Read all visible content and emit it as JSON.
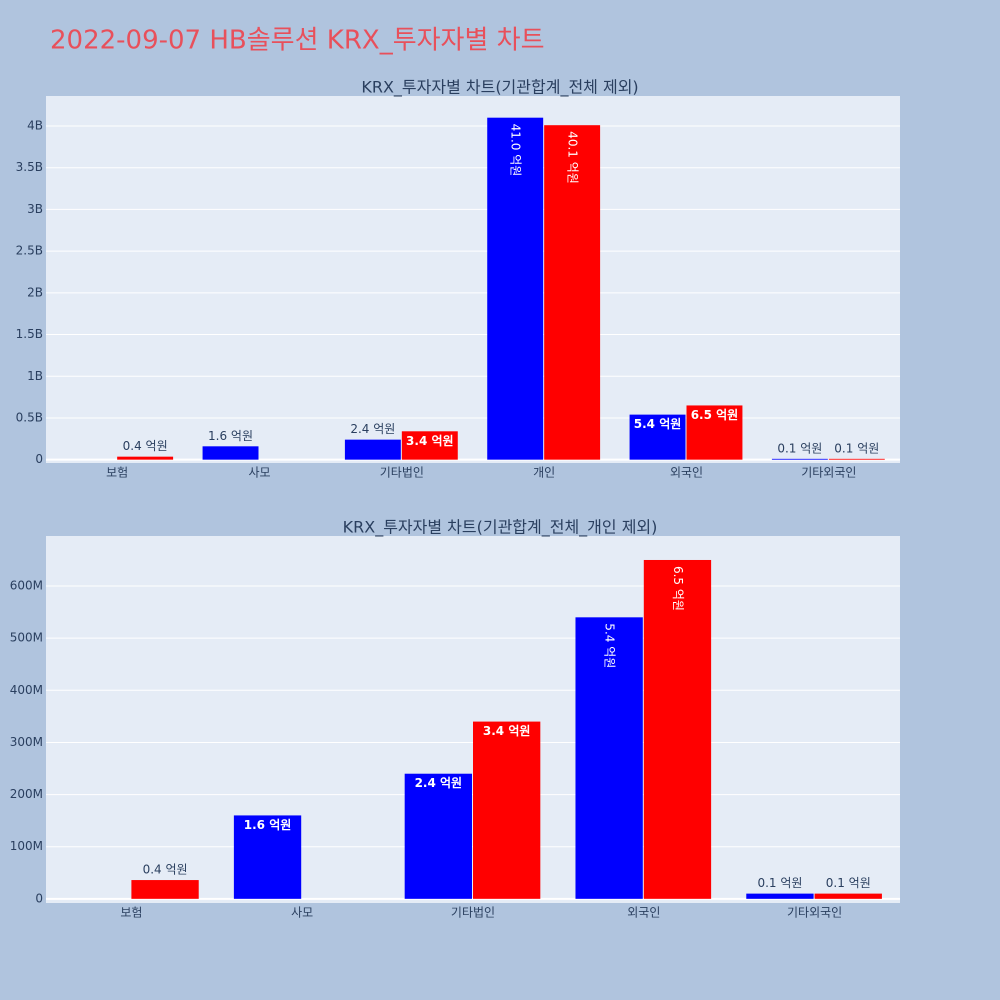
{
  "title": "2022-09-07 HB솔루션 KRX_투자자별 차트",
  "chart_data": [
    {
      "type": "bar",
      "title": "KRX_투자자별 차트(기관합계_전체 제외)",
      "categories": [
        "보험",
        "사모",
        "기타법인",
        "개인",
        "외국인",
        "기타외국인"
      ],
      "series": [
        {
          "color": "#0000ff",
          "values": [
            null,
            160000000,
            240000000,
            4100000000,
            540000000,
            10000000
          ],
          "value_labels": [
            null,
            "1.6 억원",
            "2.4 억원",
            "41.0 억원",
            "5.4 억원",
            "0.1 억원"
          ]
        },
        {
          "color": "#ff0000",
          "values": [
            36000000,
            null,
            340000000,
            4010000000,
            650000000,
            10000000
          ],
          "value_labels": [
            "0.4 억원",
            null,
            "3.4 억원",
            "40.1 억원",
            "6.5 억원",
            "0.1 억원"
          ]
        }
      ],
      "ylim": [
        -40000000,
        4360000000
      ],
      "yticks": [
        0,
        {
          "value": 500000000,
          "label": "0.5B"
        },
        {
          "value": 1000000000,
          "label": "1B"
        },
        {
          "value": 1500000000,
          "label": "1.5B"
        },
        {
          "value": 2000000000,
          "label": "2B"
        },
        {
          "value": 2500000000,
          "label": "2.5B"
        },
        {
          "value": 3000000000,
          "label": "3B"
        },
        {
          "value": 3500000000,
          "label": "3.5B"
        },
        {
          "value": 4000000000,
          "label": "4B"
        }
      ],
      "grid": true
    },
    {
      "type": "bar",
      "title": "KRX_투자자별 차트(기관합계_전체_개인 제외)",
      "categories": [
        "보험",
        "사모",
        "기타법인",
        "외국인",
        "기타외국인"
      ],
      "series": [
        {
          "color": "#0000ff",
          "values": [
            null,
            160000000,
            240000000,
            540000000,
            10000000
          ],
          "value_labels": [
            null,
            "1.6 억원",
            "2.4 억원",
            "5.4 억원",
            "0.1 억원"
          ]
        },
        {
          "color": "#ff0000",
          "values": [
            36000000,
            null,
            340000000,
            650000000,
            10000000
          ],
          "value_labels": [
            "0.4 억원",
            null,
            "3.4 억원",
            "6.5 억원",
            "0.1 억원"
          ]
        }
      ],
      "ylim": [
        -8000000,
        696000000
      ],
      "yticks": [
        0,
        {
          "value": 100000000,
          "label": "100M"
        },
        {
          "value": 200000000,
          "label": "200M"
        },
        {
          "value": 300000000,
          "label": "300M"
        },
        {
          "value": 400000000,
          "label": "400M"
        },
        {
          "value": 500000000,
          "label": "500M"
        },
        {
          "value": 600000000,
          "label": "600M"
        }
      ],
      "grid": true
    }
  ]
}
